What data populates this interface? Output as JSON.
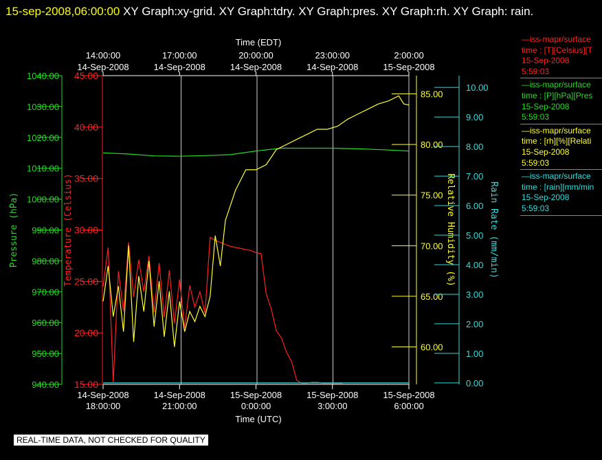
{
  "header": {
    "timestamp": "15-sep-2008,06:00:00",
    "titles": "XY Graph:xy-grid.  XY Graph:tdry.  XY Graph:pres.  XY Graph:rh.  XY Graph: rain."
  },
  "footer": {
    "notice": "REAL-TIME DATA, NOT CHECKED FOR QUALITY"
  },
  "legend": [
    {
      "line1": "—iss-mapr/surface",
      "line2": "time : [T][Celsius][T",
      "line3": "15-Sep-2008",
      "line4": "5:59:03",
      "color": "#ff2020"
    },
    {
      "line1": "—iss-mapr/surface",
      "line2": "time : [P][hPa][Pres",
      "line3": "15-Sep-2008",
      "line4": "5:59:03",
      "color": "#22dd22"
    },
    {
      "line1": "—iss-mapr/surface",
      "line2": "time : [rh][%][Relati",
      "line3": "15-Sep-2008",
      "line4": "5:59:03",
      "color": "#ffff33"
    },
    {
      "line1": "—iss-mapr/surface",
      "line2": "time : [rain][mm/min",
      "line3": "15-Sep-2008",
      "line4": "5:59:03",
      "color": "#33dddd"
    }
  ],
  "chart_data": {
    "type": "line",
    "top_axis": {
      "title": "Time (EDT)",
      "ticks": [
        {
          "time": "14:00:00",
          "date": "14-Sep-2008"
        },
        {
          "time": "17:00:00",
          "date": "14-Sep-2008"
        },
        {
          "time": "20:00:00",
          "date": "14-Sep-2008"
        },
        {
          "time": "23:00:00",
          "date": "14-Sep-2008"
        },
        {
          "time": "2:00:00",
          "date": "15-Sep-2008"
        }
      ]
    },
    "bottom_axis": {
      "title": "Time (UTC)",
      "ticks": [
        {
          "date": "14-Sep-2008",
          "time": "18:00:00"
        },
        {
          "date": "14-Sep-2008",
          "time": "21:00:00"
        },
        {
          "date": "15-Sep-2008",
          "time": "0:00:00"
        },
        {
          "date": "15-Sep-2008",
          "time": "3:00:00"
        },
        {
          "date": "15-Sep-2008",
          "time": "6:00:00"
        }
      ]
    },
    "grid": true,
    "y_axes": {
      "pressure": {
        "label": "Pressure (hPa)",
        "color": "#22dd22",
        "range": [
          940,
          1040
        ],
        "ticks": [
          "940.00",
          "950.00",
          "960.00",
          "970.00",
          "980.00",
          "990.00",
          "1000.00",
          "1010.00",
          "1020.00",
          "1030.00",
          "1040.00"
        ]
      },
      "temperature": {
        "label": "Temperature (Celsius)",
        "color": "#ff2020",
        "range": [
          15,
          45
        ],
        "ticks": [
          "15.00",
          "20.00",
          "25.00",
          "30.00",
          "35.00",
          "40.00",
          "45.00"
        ]
      },
      "humidity": {
        "label": "Relative Humidity (%)",
        "color": "#ffff33",
        "range": [
          56.3,
          86.8
        ],
        "ticks": [
          "60.00",
          "65.00",
          "70.00",
          "75.00",
          "80.00",
          "85.00"
        ]
      },
      "rain": {
        "label": "Rain Rate (mm/min)",
        "color": "#33dddd",
        "range": [
          -0.05,
          10.4
        ],
        "ticks": [
          "0.00",
          "1.00",
          "2.00",
          "3.00",
          "4.00",
          "5.00",
          "6.00",
          "7.00",
          "8.00",
          "9.00",
          "10.00"
        ]
      }
    },
    "series": [
      {
        "name": "Temperature",
        "color": "#ff2020",
        "x_hours_utc": [
          18.0,
          18.2,
          18.4,
          18.6,
          18.8,
          19.0,
          19.2,
          19.4,
          19.6,
          19.8,
          20.0,
          20.2,
          20.4,
          20.6,
          20.8,
          21.0,
          21.2,
          21.4,
          21.6,
          21.8,
          22.0,
          22.2,
          22.4,
          22.6,
          22.8,
          23.0,
          23.4,
          23.8,
          0.0,
          0.2,
          0.4,
          0.6,
          0.8,
          1.0,
          1.2,
          1.4,
          1.6,
          1.8,
          2.0,
          2.2,
          2.4,
          2.6,
          3.0,
          3.4
        ],
        "day_offset": [
          0,
          0,
          0,
          0,
          0,
          0,
          0,
          0,
          0,
          0,
          0,
          0,
          0,
          0,
          0,
          0,
          0,
          0,
          0,
          0,
          0,
          0,
          0,
          0,
          0,
          0,
          0,
          0,
          1,
          1,
          1,
          1,
          1,
          1,
          1,
          1,
          1,
          1,
          1,
          1,
          1,
          1,
          1,
          1
        ],
        "values": [
          24.5,
          28.3,
          15.2,
          26.0,
          22.1,
          28.8,
          23.5,
          27.1,
          24.0,
          27.5,
          22.0,
          26.8,
          21.5,
          26.1,
          20.9,
          25.2,
          20.5,
          24.6,
          22.5,
          24.0,
          21.9,
          29.3,
          29.0,
          28.8,
          28.6,
          28.4,
          28.2,
          28.0,
          27.8,
          27.7,
          23.8,
          22.3,
          20.2,
          19.5,
          18.1,
          17.2,
          15.4,
          15.1,
          15.1,
          15.2,
          15.2,
          15.1,
          15.1,
          15.1
        ]
      },
      {
        "name": "Pressure",
        "color": "#22dd22",
        "x_hours_elapsed": [
          0,
          1,
          2,
          3,
          4,
          5,
          6,
          7,
          8,
          9,
          10,
          11,
          12
        ],
        "values": [
          1015.0,
          1014.6,
          1014.0,
          1013.9,
          1014.1,
          1014.4,
          1015.6,
          1016.5,
          1016.5,
          1016.5,
          1016.3,
          1016.0,
          1015.6
        ]
      },
      {
        "name": "Relative Humidity",
        "color": "#ffff33",
        "x_hours_elapsed": [
          0,
          0.2,
          0.4,
          0.6,
          0.8,
          1.0,
          1.2,
          1.4,
          1.6,
          1.8,
          2.0,
          2.2,
          2.4,
          2.6,
          2.8,
          3.0,
          3.2,
          3.4,
          3.6,
          3.8,
          4.0,
          4.2,
          4.4,
          4.6,
          4.8,
          5.0,
          5.2,
          5.4,
          5.6,
          6.0,
          6.4,
          6.8,
          7.2,
          7.6,
          8.0,
          8.4,
          8.8,
          9.2,
          9.6,
          10.0,
          10.4,
          10.8,
          11.2,
          11.6,
          11.8,
          12.0
        ],
        "values": [
          64.5,
          68.0,
          63.0,
          66.0,
          61.5,
          70.0,
          60.5,
          67.0,
          63.5,
          68.5,
          62.0,
          66.5,
          61.0,
          65.5,
          60.0,
          64.5,
          61.5,
          63.5,
          62.5,
          64.0,
          63.0,
          65.0,
          71.0,
          68.0,
          72.5,
          74.0,
          75.5,
          76.5,
          77.5,
          77.5,
          78.0,
          79.5,
          80.0,
          80.5,
          81.0,
          81.5,
          81.5,
          81.8,
          82.5,
          83.0,
          83.5,
          84.0,
          84.3,
          84.8,
          84.0,
          83.9
        ]
      },
      {
        "name": "Rain Rate",
        "color": "#33dddd",
        "x_hours_elapsed": [
          0,
          12
        ],
        "values": [
          0.0,
          0.0
        ]
      }
    ]
  }
}
